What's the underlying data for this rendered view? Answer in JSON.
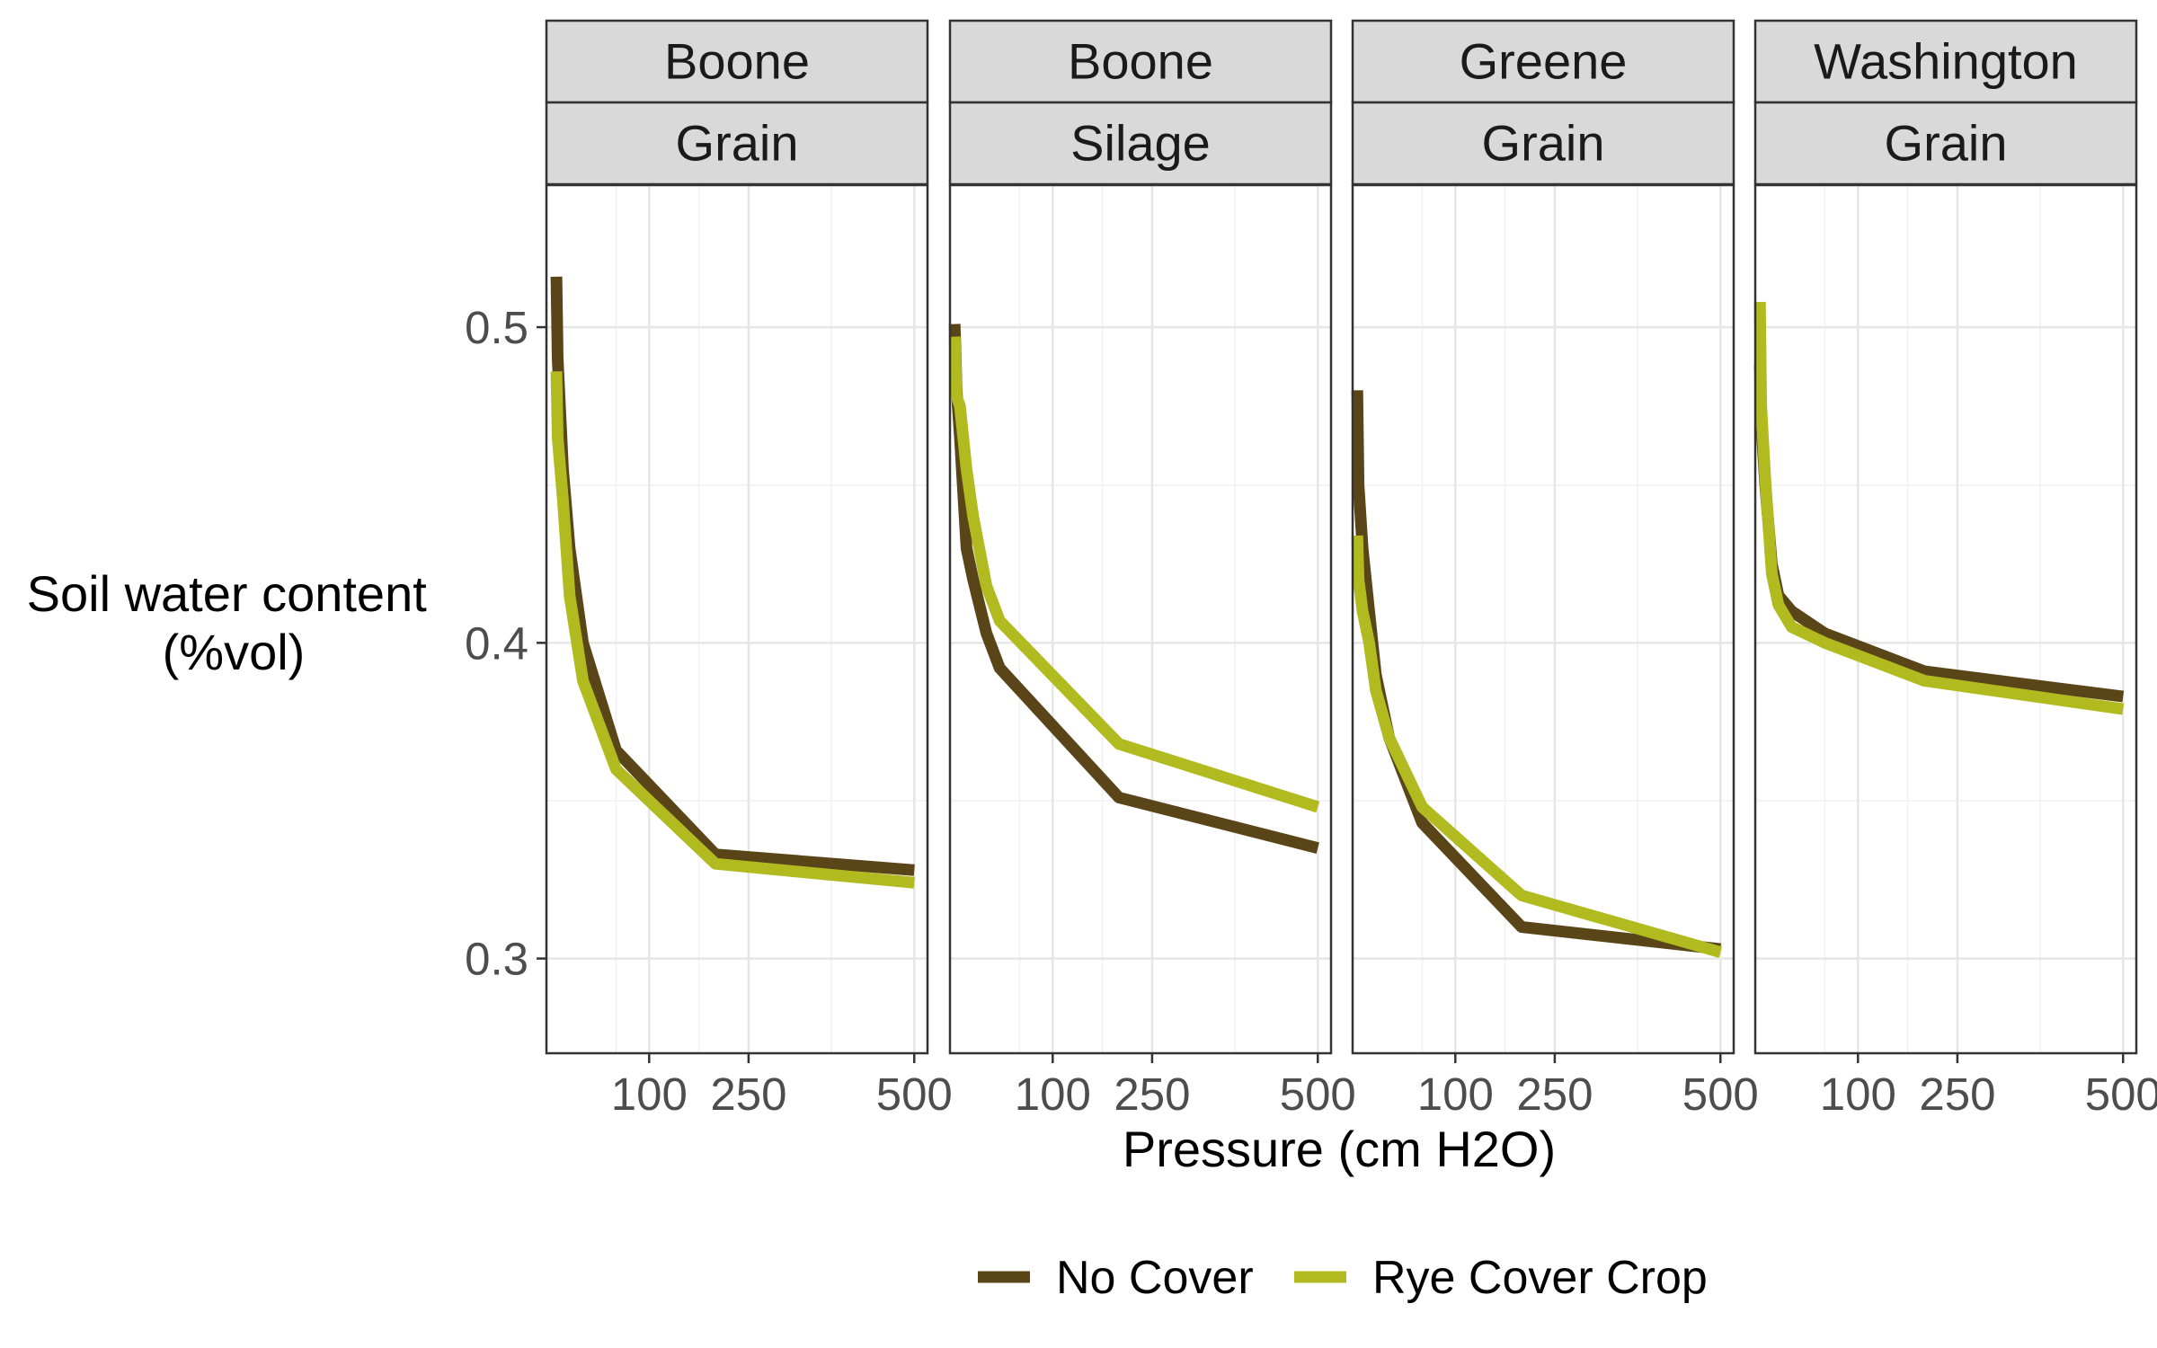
{
  "chart_data": {
    "type": "line",
    "x_label": "Pressure (cm H2O)",
    "y_label_lines": [
      "Soil water content",
      "(%vol)"
    ],
    "xlim": [
      -55,
      520
    ],
    "ylim": [
      0.27,
      0.545
    ],
    "x_ticks": [
      100,
      250,
      500
    ],
    "x_minor_ticks": [
      50,
      175,
      375
    ],
    "y_ticks": [
      0.3,
      0.4,
      0.5
    ],
    "y_minor_ticks": [
      0.35,
      0.45
    ],
    "colors": {
      "No Cover": "#5a4519",
      "Rye Cover Crop": "#b1bb1f"
    },
    "legend": [
      {
        "label": "No Cover",
        "color": "#5a4519"
      },
      {
        "label": "Rye Cover Crop",
        "color": "#b1bb1f"
      }
    ],
    "panels": [
      {
        "county": "Boone",
        "crop": "Grain",
        "series": [
          {
            "name": "No Cover",
            "x": [
              -40,
              -38,
              -30,
              -20,
              0,
              50,
              200,
              500
            ],
            "y": [
              0.516,
              0.49,
              0.455,
              0.43,
              0.4,
              0.366,
              0.333,
              0.328
            ]
          },
          {
            "name": "Rye Cover Crop",
            "x": [
              -40,
              -38,
              -30,
              -20,
              0,
              50,
              200,
              500
            ],
            "y": [
              0.486,
              0.465,
              0.445,
              0.415,
              0.388,
              0.36,
              0.33,
              0.324
            ]
          }
        ]
      },
      {
        "county": "Boone",
        "crop": "Silage",
        "series": [
          {
            "name": "No Cover",
            "x": [
              -48,
              -45,
              -40,
              -30,
              -20,
              0,
              20,
              200,
              500
            ],
            "y": [
              0.501,
              0.48,
              0.465,
              0.43,
              0.42,
              0.403,
              0.392,
              0.351,
              0.335
            ]
          },
          {
            "name": "Rye Cover Crop",
            "x": [
              -48,
              -45,
              -40,
              -30,
              -20,
              0,
              20,
              200,
              500
            ],
            "y": [
              0.497,
              0.478,
              0.475,
              0.455,
              0.44,
              0.418,
              0.407,
              0.368,
              0.348
            ]
          }
        ]
      },
      {
        "county": "Greene",
        "crop": "Grain",
        "series": [
          {
            "name": "No Cover",
            "x": [
              -48,
              -46,
              -40,
              -30,
              -20,
              0,
              50,
              200,
              500
            ],
            "y": [
              0.48,
              0.45,
              0.43,
              0.41,
              0.39,
              0.37,
              0.343,
              0.31,
              0.303
            ]
          },
          {
            "name": "Rye Cover Crop",
            "x": [
              -48,
              -46,
              -40,
              -30,
              -20,
              0,
              50,
              200,
              500
            ],
            "y": [
              0.434,
              0.42,
              0.41,
              0.4,
              0.385,
              0.37,
              0.348,
              0.32,
              0.302
            ]
          }
        ]
      },
      {
        "county": "Washington",
        "crop": "Grain",
        "series": [
          {
            "name": "No Cover",
            "x": [
              -48,
              -46,
              -40,
              -30,
              -20,
              0,
              50,
              200,
              500
            ],
            "y": [
              0.488,
              0.47,
              0.45,
              0.425,
              0.415,
              0.41,
              0.403,
              0.391,
              0.383
            ]
          },
          {
            "name": "Rye Cover Crop",
            "x": [
              -48,
              -46,
              -40,
              -30,
              -20,
              0,
              50,
              200,
              500
            ],
            "y": [
              0.508,
              0.475,
              0.452,
              0.422,
              0.412,
              0.405,
              0.4,
              0.388,
              0.379
            ]
          }
        ]
      }
    ]
  }
}
